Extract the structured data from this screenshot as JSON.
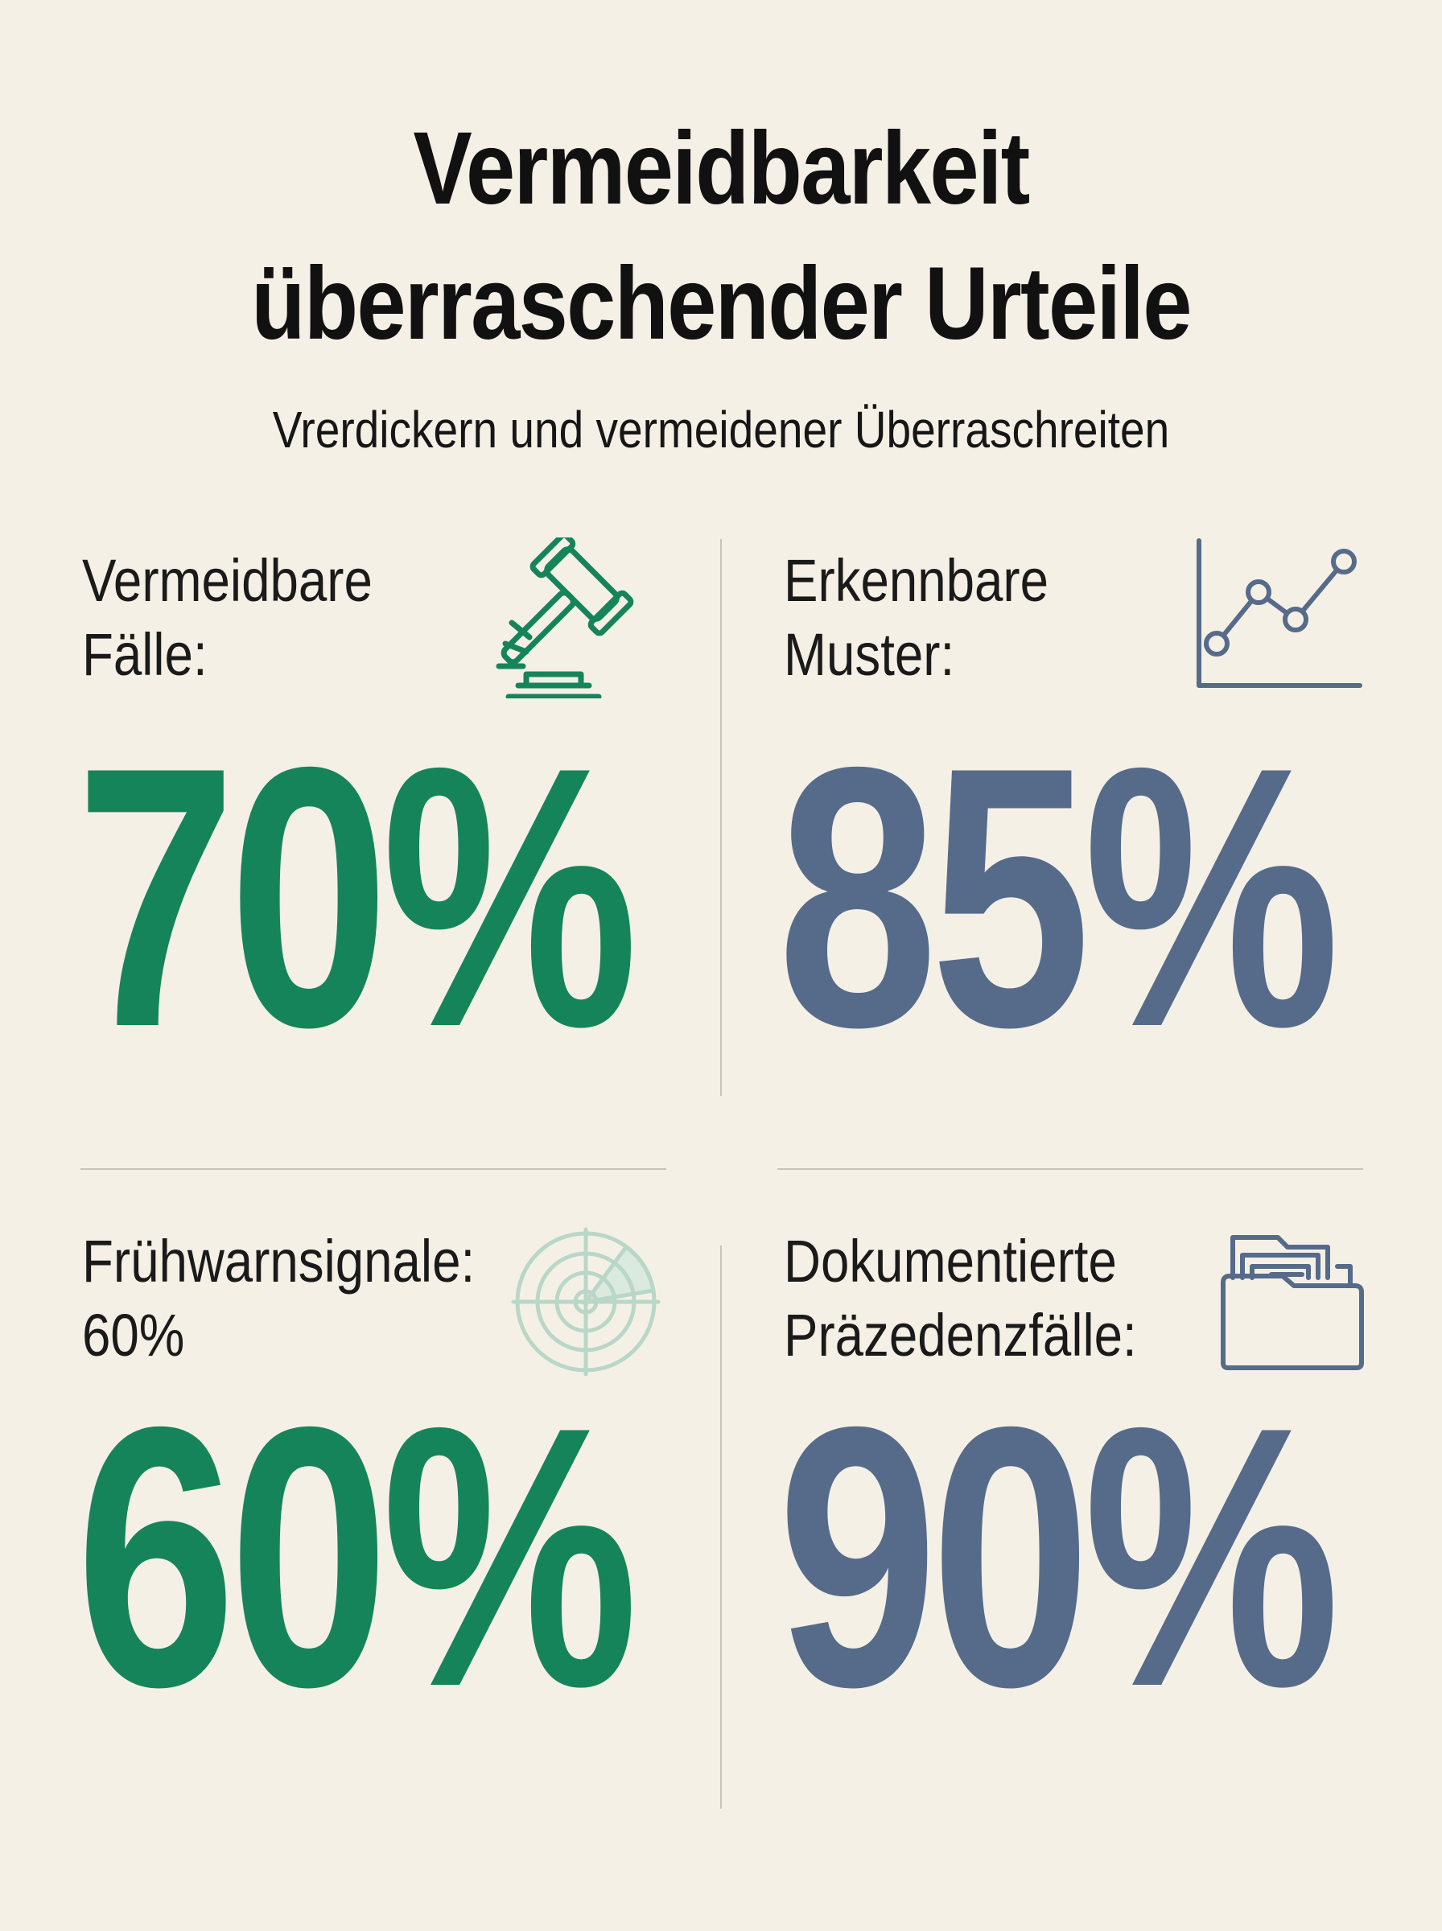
{
  "header": {
    "title_line1": "Vermeidbarkeit",
    "title_line2": "überraschender Urteile",
    "subtitle": "Vrerdickern und vermeidener Überraschreiten"
  },
  "colors": {
    "background": "#f5f0e6",
    "green": "#16845a",
    "blue": "#566b8a",
    "divider": "#c9c4ba"
  },
  "stats": [
    {
      "label_line1": "Vermeidbare",
      "label_line2": "Fälle:",
      "value": "70%",
      "icon": "gavel-icon",
      "color": "green"
    },
    {
      "label_line1": "Erkennbare",
      "label_line2": "Muster:",
      "value": "85%",
      "icon": "line-chart-icon",
      "color": "blue"
    },
    {
      "label_line1": "Frühwarnsignale:",
      "label_line2": "60%",
      "value": "60%",
      "icon": "radar-icon",
      "color": "green"
    },
    {
      "label_line1": "Dokumentierte",
      "label_line2": "Präzedenzfälle:",
      "value": "90%",
      "icon": "folder-icon",
      "color": "blue"
    }
  ]
}
